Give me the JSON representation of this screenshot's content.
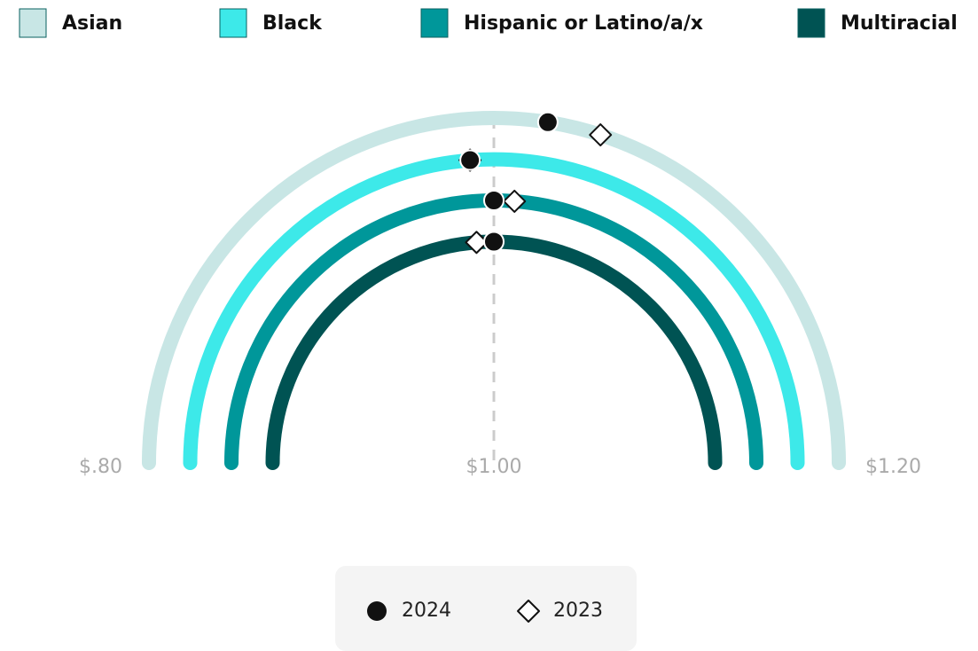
{
  "chart_data": {
    "type": "radial",
    "years": [
      "2024",
      "2023"
    ],
    "markers": [
      "circle",
      "diamond"
    ],
    "series": [
      {
        "name": "Asian",
        "color": "#c8e6e5",
        "values": [
          1.02,
          1.04
        ]
      },
      {
        "name": "Black",
        "color": "#3de9e9",
        "values": [
          0.99,
          0.99
        ]
      },
      {
        "name": "Hispanic or Latino/a/x",
        "color": "#00979a",
        "values": [
          1.0,
          1.01
        ]
      },
      {
        "name": "Multiracial",
        "color": "#005353",
        "values": [
          1.0,
          0.99
        ]
      }
    ],
    "xlim": [
      0.8,
      1.2
    ],
    "xticks": [
      {
        "value": 0.8,
        "label": "$.80"
      },
      {
        "value": 1.0,
        "label": "$1.00"
      },
      {
        "value": 1.2,
        "label": "$1.20"
      }
    ]
  }
}
